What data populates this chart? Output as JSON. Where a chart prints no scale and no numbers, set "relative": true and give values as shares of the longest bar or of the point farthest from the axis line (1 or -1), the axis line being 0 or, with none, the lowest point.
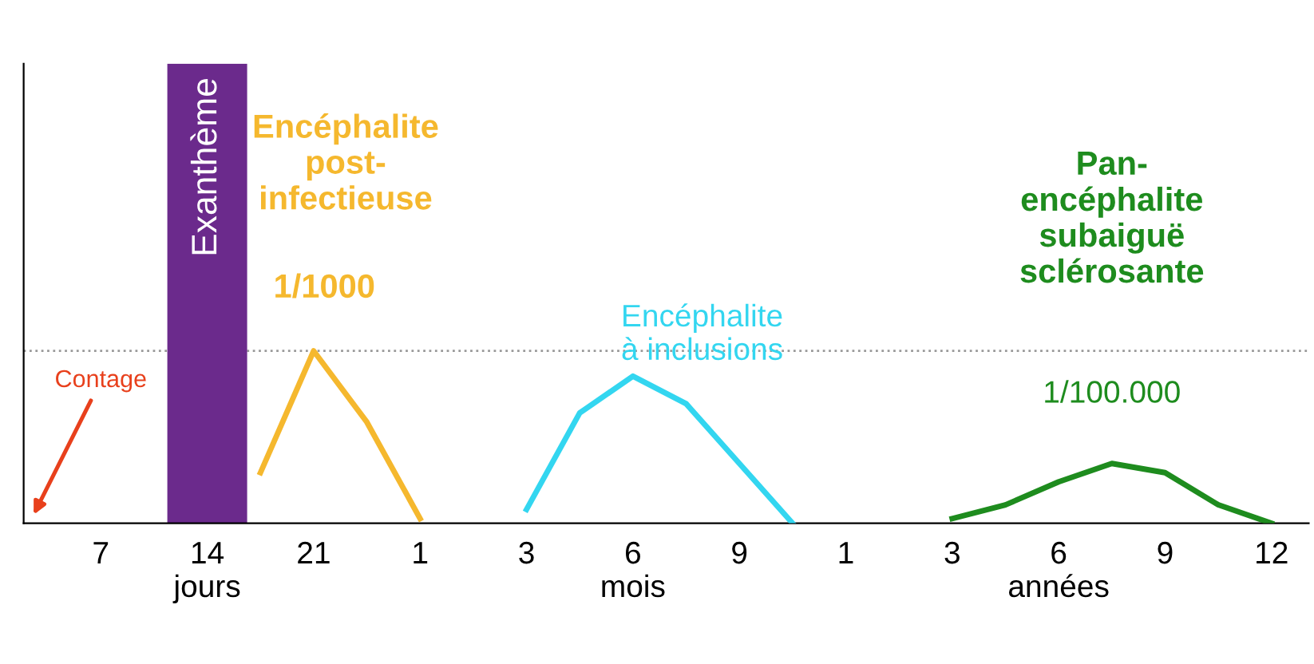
{
  "chart_data": {
    "type": "line",
    "relative": true,
    "legend": false,
    "grid": false,
    "marker": "none",
    "line_style": "solid",
    "categories": [
      "7",
      null,
      "14\njours",
      null,
      "21",
      null,
      "1",
      null,
      "3",
      null,
      "6\nmois",
      null,
      "9",
      null,
      "1",
      null,
      "3",
      null,
      "6\nannées",
      null,
      "9",
      null,
      "12"
    ],
    "series": [
      {
        "type": "bar",
        "name": "Exanthème",
        "color": "#6b2a8c",
        "values": [
          null,
          null,
          1,
          null,
          null,
          null,
          null,
          null,
          null,
          null,
          null,
          null,
          null,
          null,
          null,
          null,
          null,
          null,
          null,
          null,
          null,
          null,
          null
        ]
      },
      {
        "color": "#f5b82e",
        "values": [
          null,
          null,
          null,
          0.11,
          0.375,
          0.22,
          0.01,
          null,
          null,
          null,
          null,
          null,
          null,
          null,
          null,
          null,
          null,
          null,
          null,
          null,
          null,
          null,
          null
        ]
      },
      {
        "color": "#33d6f0",
        "values": [
          null,
          null,
          null,
          null,
          null,
          null,
          null,
          null,
          0.03,
          0.24,
          0.32,
          0.26,
          0.13,
          0,
          null,
          null,
          null,
          null,
          null,
          null,
          null,
          null,
          null
        ]
      },
      {
        "color": "#1e8c1e",
        "values": [
          null,
          null,
          null,
          null,
          null,
          null,
          null,
          null,
          null,
          null,
          null,
          null,
          null,
          null,
          null,
          null,
          0.01,
          0.04,
          0.09,
          0.13,
          0.11,
          0.04,
          0
        ]
      }
    ],
    "ref_lines": [
      {
        "axis": "y",
        "value": 0.375,
        "line_style": "dotted",
        "color": "#999999"
      }
    ],
    "annotations": [
      "Encéphalite\npost-\ninfectieuse",
      "1/1000",
      "Encéphalite\nà inclusions",
      "Pan-\nencéphalite\nsubaiguë\nsclérosante",
      "1/100.000",
      "Contage"
    ]
  }
}
